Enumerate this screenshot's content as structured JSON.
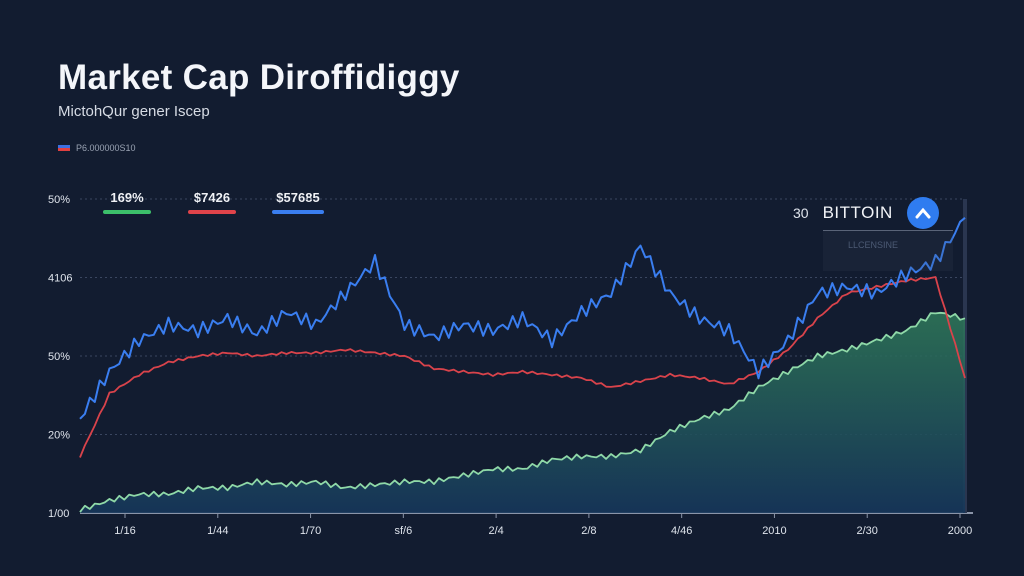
{
  "chart_data": {
    "type": "line",
    "title": "Market Cap Diroffidiggy",
    "subtitle": "MictohQur gener Iscep",
    "legend_note": "P6.000000S10",
    "stats": [
      {
        "label": "169%",
        "color": "#3cbf6a"
      },
      {
        "label": "$7426",
        "color": "#e0434a"
      },
      {
        "label": "$57685",
        "color": "#3a7ef0"
      }
    ],
    "annotation": {
      "number": "30",
      "name": "BITTOIN",
      "sub": "LLCENSINE"
    },
    "y_ticks": [
      "1/00",
      "20%",
      "50%",
      "4106",
      "50%"
    ],
    "x_ticks": [
      "1/16",
      "1/44",
      "1/70",
      "sf/6",
      "2/4",
      "2/8",
      "4/46",
      "2010",
      "2/30",
      "2000"
    ],
    "ylim": [
      0,
      100
    ],
    "legend_position": "top-left",
    "grid": true,
    "series": [
      {
        "name": "blue",
        "color": "#3a7ef0",
        "values": [
          30,
          45,
          55,
          60,
          58,
          62,
          57,
          64,
          60,
          70,
          80,
          60,
          56,
          60,
          58,
          62,
          55,
          64,
          70,
          85,
          70,
          62,
          58,
          45,
          55,
          70,
          72,
          70,
          76,
          80,
          94
        ]
      },
      {
        "name": "red",
        "color": "#d9434b",
        "values": [
          18,
          38,
          44,
          48,
          50,
          51,
          50,
          51,
          51,
          52,
          51,
          50,
          46,
          45,
          44,
          45,
          44,
          43,
          40,
          42,
          44,
          43,
          41,
          45,
          52,
          62,
          70,
          72,
          74,
          75,
          43
        ]
      },
      {
        "name": "green",
        "color": "#8fd9a8",
        "fill": "#2f7a5a",
        "values": [
          1,
          4,
          6,
          6,
          8,
          8,
          10,
          9,
          10,
          8,
          9,
          10,
          10,
          12,
          14,
          14,
          17,
          18,
          18,
          20,
          26,
          30,
          33,
          40,
          45,
          50,
          52,
          55,
          58,
          64,
          62
        ]
      }
    ]
  }
}
